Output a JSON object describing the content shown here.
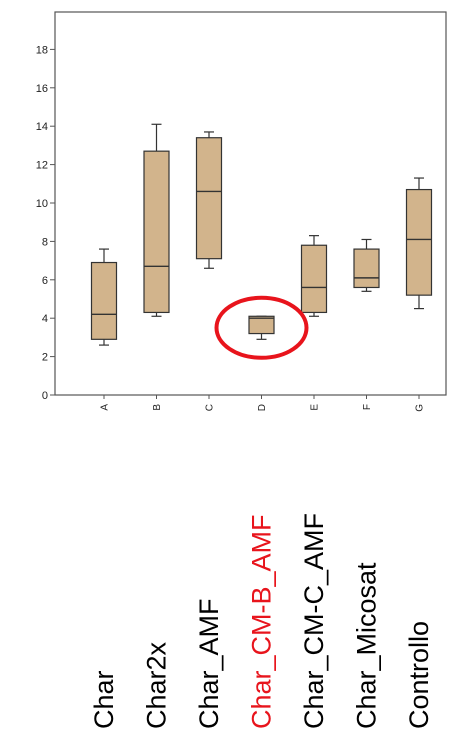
{
  "chart_data": {
    "type": "box",
    "ylim": [
      0,
      19
    ],
    "yticks": [
      0,
      2,
      4,
      6,
      8,
      10,
      12,
      14,
      16,
      18
    ],
    "categories": [
      "A",
      "B",
      "C",
      "D",
      "E",
      "F",
      "G"
    ],
    "labels": [
      "Char",
      "Char2x",
      "Char_AMF",
      "Char_CM-B_AMF",
      "Char_CM-C_AMF",
      "Char_Micosat",
      "Controllo"
    ],
    "boxes": [
      {
        "min": 2.6,
        "q1": 2.9,
        "median": 4.2,
        "q3": 6.9,
        "max": 7.6
      },
      {
        "min": 4.1,
        "q1": 4.3,
        "median": 6.7,
        "q3": 12.7,
        "max": 14.1
      },
      {
        "min": 6.6,
        "q1": 7.1,
        "median": 10.6,
        "q3": 13.4,
        "max": 13.7
      },
      {
        "min": 2.9,
        "q1": 3.2,
        "median": 4.0,
        "q3": 4.1,
        "max": 4.1
      },
      {
        "min": 4.1,
        "q1": 4.3,
        "median": 5.6,
        "q3": 7.8,
        "max": 8.3
      },
      {
        "min": 5.4,
        "q1": 5.6,
        "median": 6.1,
        "q3": 7.6,
        "max": 8.1
      },
      {
        "min": 4.5,
        "q1": 5.2,
        "median": 8.1,
        "q3": 10.7,
        "max": 11.3
      }
    ],
    "highlight": {
      "category": "D",
      "shape": "circle",
      "color": "#e8141c"
    },
    "colors": {
      "box_fill": "#d2b48c",
      "box_stroke": "#333333",
      "axis": "#555555",
      "highlight_label": "#e8141c"
    }
  }
}
